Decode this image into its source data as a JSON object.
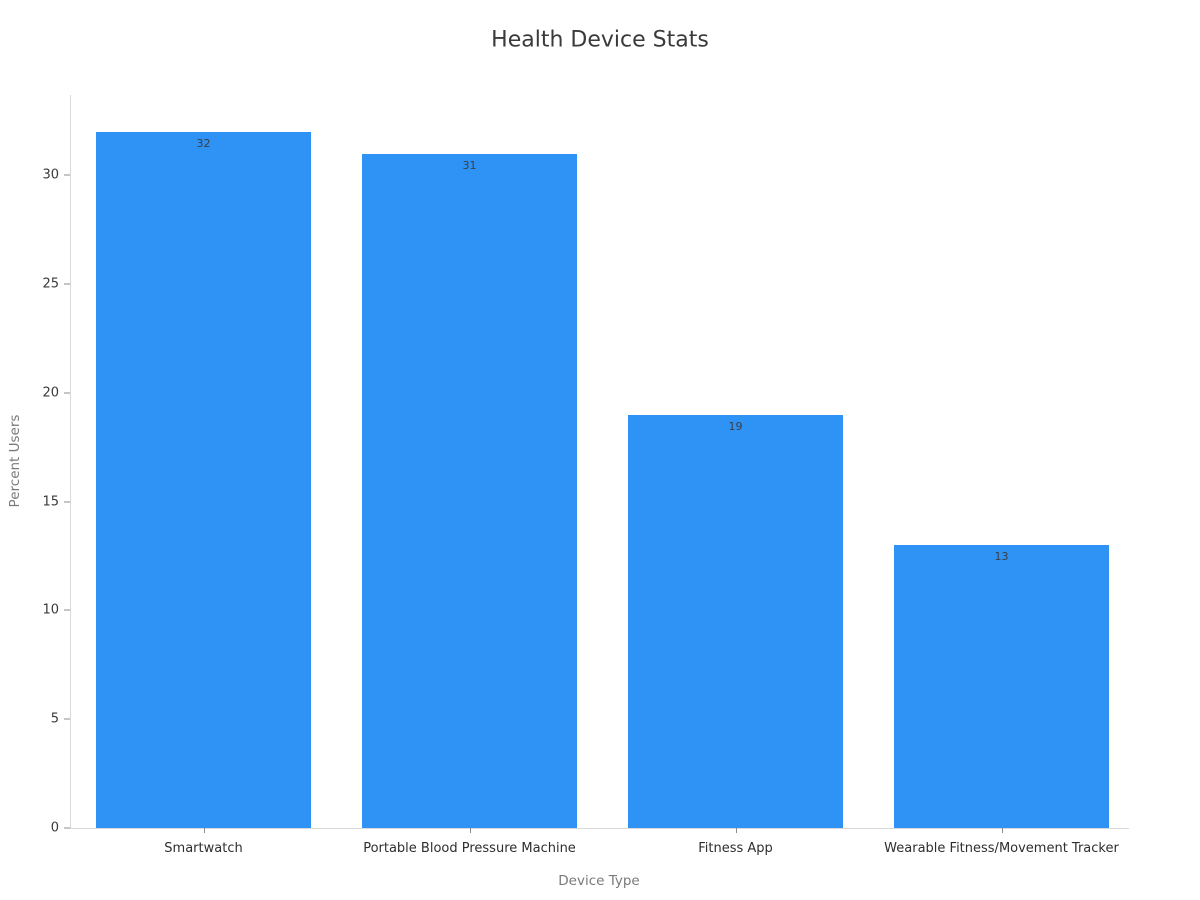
{
  "chart_data": {
    "type": "bar",
    "title": "Health Device Stats",
    "xlabel": "Device Type",
    "ylabel": "Percent Users",
    "categories": [
      "Smartwatch",
      "Portable Blood Pressure Machine",
      "Fitness App",
      "Wearable Fitness/Movement Tracker"
    ],
    "values": [
      32,
      31,
      19,
      13
    ],
    "value_labels": [
      "32",
      "31",
      "19",
      "13"
    ],
    "yticks": [
      0,
      5,
      10,
      15,
      20,
      25,
      30
    ],
    "ylim": [
      0,
      33.7
    ],
    "grid": false,
    "legend": "none",
    "colors": {
      "bar": "#2f92f5",
      "axis_line": "#d9d9d9",
      "tick_mark": "#8c8c8c",
      "title_text": "#3a3a3a",
      "axis_title_text": "#7a7a7a",
      "tick_label_text": "#3a3a3a",
      "bar_value_text": "#3a3f44",
      "background": "#ffffff"
    }
  }
}
